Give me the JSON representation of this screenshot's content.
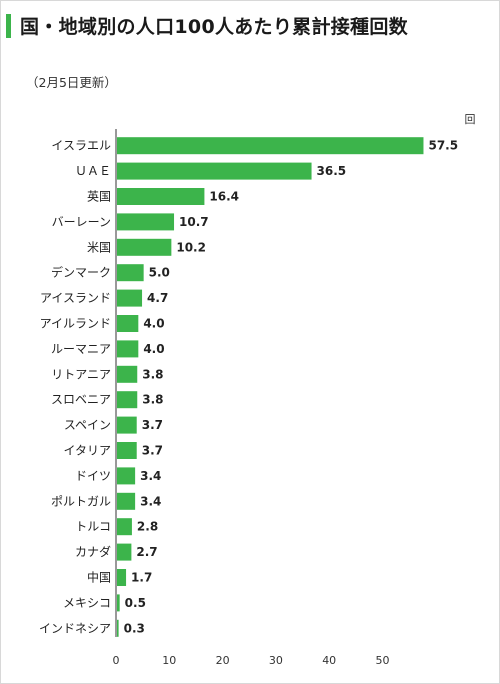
{
  "title": "国・地域別の人口100人あたり累計接種回数",
  "subtitle": "（2月5日更新）",
  "colors": {
    "bar": "#3cb44b",
    "accent": "#3cb44b",
    "axis": "#333333"
  },
  "chart_data": {
    "type": "bar",
    "orientation": "horizontal",
    "title": "国・地域別の人口100人あたり累計接種回数",
    "subtitle": "（2月5日更新）",
    "unit": "回",
    "categories": [
      "イスラエル",
      "ＵＡＥ",
      "英国",
      "バーレーン",
      "米国",
      "デンマーク",
      "アイスランド",
      "アイルランド",
      "ルーマニア",
      "リトアニア",
      "スロベニア",
      "スペイン",
      "イタリア",
      "ドイツ",
      "ポルトガル",
      "トルコ",
      "カナダ",
      "中国",
      "メキシコ",
      "インドネシア"
    ],
    "values": [
      57.5,
      36.5,
      16.4,
      10.7,
      10.2,
      5.0,
      4.7,
      4.0,
      4.0,
      3.8,
      3.8,
      3.7,
      3.7,
      3.4,
      3.4,
      2.8,
      2.7,
      1.7,
      0.5,
      0.3
    ],
    "value_labels": [
      "57.5",
      "36.5",
      "16.4",
      "10.7",
      "10.2",
      "5.0",
      "4.7",
      "4.0",
      "4.0",
      "3.8",
      "3.8",
      "3.7",
      "3.7",
      "3.4",
      "3.4",
      "2.8",
      "2.7",
      "1.7",
      "0.5",
      "0.3"
    ],
    "xticks": [
      0,
      10,
      20,
      30,
      40,
      50
    ],
    "xlim": [
      0,
      58
    ],
    "grid": false,
    "legend": "none"
  }
}
